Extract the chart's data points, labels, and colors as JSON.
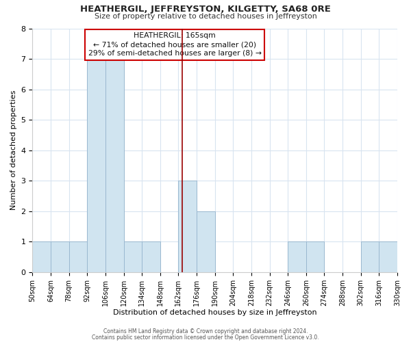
{
  "title": "HEATHERGIL, JEFFREYSTON, KILGETTY, SA68 0RE",
  "subtitle": "Size of property relative to detached houses in Jeffreyston",
  "xlabel": "Distribution of detached houses by size in Jeffreyston",
  "ylabel": "Number of detached properties",
  "bin_edges": [
    50,
    64,
    78,
    92,
    106,
    120,
    134,
    148,
    162,
    176,
    190,
    204,
    218,
    232,
    246,
    260,
    274,
    288,
    302,
    316,
    330
  ],
  "bar_heights": [
    1,
    1,
    1,
    7,
    7,
    1,
    1,
    0,
    3,
    2,
    0,
    0,
    0,
    0,
    1,
    1,
    0,
    0,
    1,
    1
  ],
  "bar_color": "#d0e4f0",
  "bar_edgecolor": "#9ab8d0",
  "grid_color": "#d8e4f0",
  "redline_x": 165,
  "redline_color": "#990000",
  "annotation_title": "HEATHERGIL: 165sqm",
  "annotation_line1": "← 71% of detached houses are smaller (20)",
  "annotation_line2": "29% of semi-detached houses are larger (8) →",
  "annotation_box_facecolor": "#ffffff",
  "annotation_box_edgecolor": "#cc0000",
  "ylim": [
    0,
    8
  ],
  "yticks": [
    0,
    1,
    2,
    3,
    4,
    5,
    6,
    7,
    8
  ],
  "footer1": "Contains HM Land Registry data © Crown copyright and database right 2024.",
  "footer2": "Contains public sector information licensed under the Open Government Licence v3.0.",
  "bg_color": "#ffffff",
  "plot_bg_color": "#ffffff",
  "spine_color": "#cccccc"
}
